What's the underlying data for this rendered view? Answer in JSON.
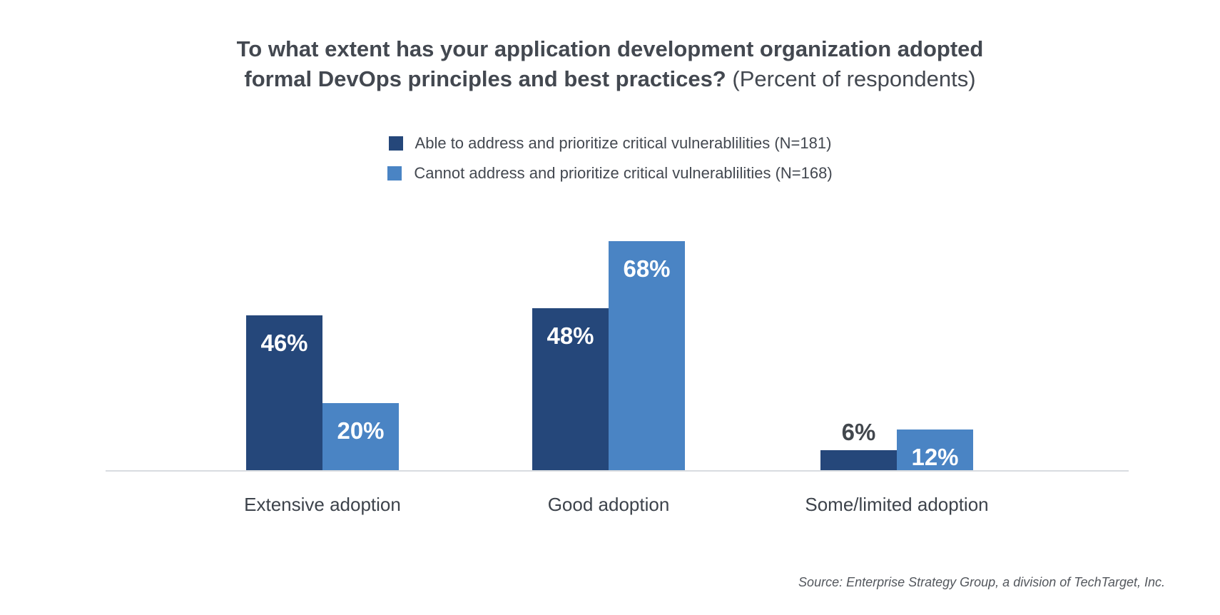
{
  "title": {
    "line1": "To what extent has your application development organization adopted",
    "line2_strong": "formal DevOps principles and best practices?",
    "line2_normal": "(Percent of respondents)"
  },
  "source": "Source: Enterprise Strategy Group, a division of TechTarget, Inc.",
  "colors": {
    "series1": "#25477a",
    "series2": "#4a84c4",
    "axis_line": "#d9dce0",
    "title_text": "#434850",
    "outside_label_text": "#42474d",
    "background": "#ffffff"
  },
  "chart_data": {
    "type": "bar",
    "title": "To what extent has your application development organization adopted formal DevOps principles and best practices? (Percent of respondents)",
    "categories": [
      "Extensive adoption",
      "Good adoption",
      "Some/limited adoption"
    ],
    "series": [
      {
        "name": "Able to address and prioritize critical vulnerablilities (N=181)",
        "color": "#25477a",
        "values": [
          46,
          48,
          6
        ],
        "labels": [
          "46%",
          "48%",
          "6%"
        ]
      },
      {
        "name": "Cannot address and prioritize critical vulnerablilities (N=168)",
        "color": "#4a84c4",
        "values": [
          20,
          68,
          12
        ],
        "labels": [
          "20%",
          "68%",
          "12%"
        ]
      }
    ],
    "value_unit": "%",
    "ylim": [
      0,
      75
    ],
    "grid": false,
    "y_axis_visible": false,
    "legend_position": "top-center"
  }
}
